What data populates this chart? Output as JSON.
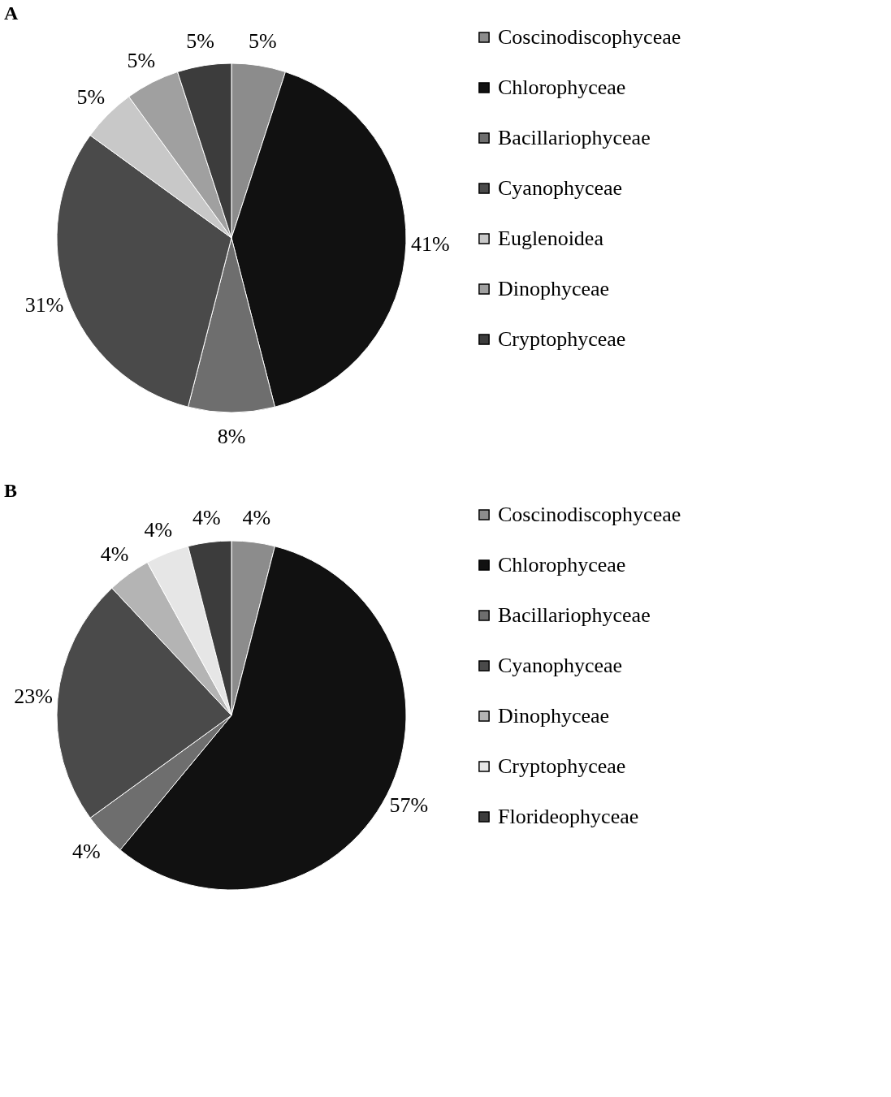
{
  "chart_data": [
    {
      "type": "pie",
      "title": "A",
      "categories": [
        "Coscinodiscophyceae",
        "Chlorophyceae",
        "Bacillariophyceae",
        "Cyanophyceae",
        "Euglenoidea",
        "Dinophyceae",
        "Cryptophyceae"
      ],
      "values": [
        5,
        41,
        8,
        31,
        5,
        5,
        5
      ],
      "value_labels": [
        "5%",
        "41%",
        "8%",
        "31%",
        "5%",
        "5%",
        "5%"
      ],
      "colors": [
        "#8c8c8c",
        "#111111",
        "#6e6e6e",
        "#4a4a4a",
        "#c8c8c8",
        "#a0a0a0",
        "#3c3c3c"
      ],
      "legend": "right"
    },
    {
      "type": "pie",
      "title": "B",
      "categories": [
        "Coscinodiscophyceae",
        "Chlorophyceae",
        "Bacillariophyceae",
        "Cyanophyceae",
        "Dinophyceae",
        "Cryptophyceae",
        "Florideophyceae"
      ],
      "values": [
        4,
        57,
        4,
        23,
        4,
        4,
        4
      ],
      "value_labels": [
        "4%",
        "57%",
        "4%",
        "23%",
        "4%",
        "4%",
        "4%"
      ],
      "colors": [
        "#8c8c8c",
        "#111111",
        "#6e6e6e",
        "#4a4a4a",
        "#b4b4b4",
        "#e6e6e6",
        "#3c3c3c"
      ],
      "legend": "right"
    }
  ]
}
